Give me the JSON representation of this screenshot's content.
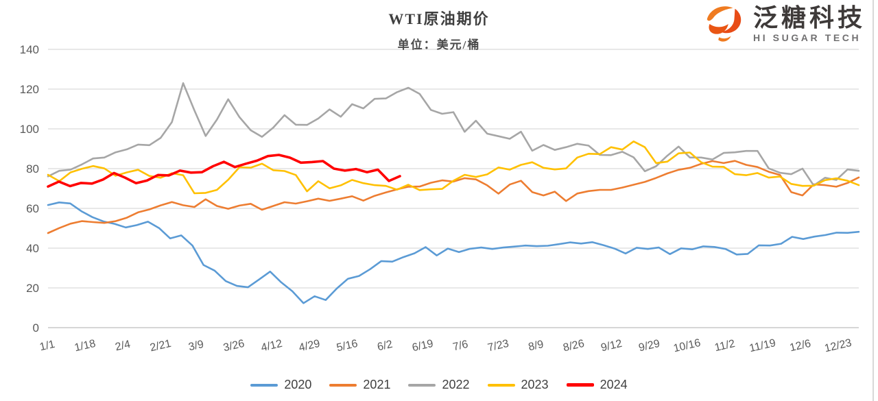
{
  "logo": {
    "name_cn": "泛糖科技",
    "name_en": "HI SUGAR TECH",
    "icon": "swirl-s-logo-icon",
    "icon_colors": [
      "#ef7b21",
      "#e84c17",
      "#e95513"
    ]
  },
  "colors": {
    "gridline": "#dbdbdb",
    "axis_line": "#c9c9c9",
    "axis_text": "#595959",
    "title_text": "#3f3f3f",
    "legend_text": "#404040",
    "window_edge": "#d8d8d8"
  },
  "chart_data": {
    "type": "line",
    "title": "WTI原油期价",
    "subtitle": "单位：美元/桶",
    "unit": "美元/桶",
    "grid": true,
    "legend_position": "bottom",
    "ylim": [
      0,
      140
    ],
    "y_ticks": [
      0,
      20,
      40,
      60,
      80,
      100,
      120,
      140
    ],
    "x_tick_labels": [
      "1/1",
      "1/18",
      "2/4",
      "2/21",
      "3/9",
      "3/26",
      "4/12",
      "4/29",
      "5/16",
      "6/2",
      "6/19",
      "7/6",
      "7/23",
      "8/9",
      "8/26",
      "9/12",
      "9/29",
      "10/16",
      "11/2",
      "11/19",
      "12/6",
      "12/23"
    ],
    "x_tick_days": [
      0,
      17,
      34,
      51,
      67,
      84,
      101,
      118,
      135,
      152,
      169,
      186,
      203,
      220,
      237,
      254,
      271,
      288,
      305,
      322,
      339,
      356
    ],
    "days_per_year": 365,
    "series": [
      {
        "name": "2020",
        "color": "#5b9bd5",
        "line_width": 2.6,
        "span_frac": 1.0,
        "values": [
          61.7,
          63.0,
          62.5,
          58.6,
          55.6,
          53.4,
          52.2,
          50.4,
          51.6,
          53.3,
          50.1,
          44.9,
          46.4,
          41.3,
          31.5,
          28.7,
          23.4,
          21.0,
          20.3,
          24.2,
          28.2,
          22.8,
          18.3,
          12.3,
          15.8,
          13.9,
          19.7,
          24.6,
          26.0,
          29.4,
          33.5,
          33.2,
          35.5,
          37.4,
          40.5,
          36.3,
          39.8,
          38.0,
          39.7,
          40.3,
          39.6,
          40.3,
          40.8,
          41.3,
          41.0,
          41.2,
          42.0,
          42.9,
          42.3,
          43.0,
          41.5,
          39.8,
          37.3,
          40.2,
          39.6,
          40.3,
          37.0,
          39.9,
          39.4,
          40.9,
          40.6,
          39.6,
          36.8,
          37.1,
          41.4,
          41.3,
          42.2,
          45.7,
          44.6,
          45.8,
          46.6,
          47.8,
          47.7,
          48.2
        ]
      },
      {
        "name": "2021",
        "color": "#ed7d31",
        "line_width": 2.6,
        "span_frac": 1.0,
        "values": [
          47.6,
          50.1,
          52.3,
          53.6,
          53.1,
          52.7,
          53.6,
          55.3,
          58.0,
          59.5,
          61.5,
          63.2,
          61.6,
          60.7,
          64.6,
          61.2,
          59.8,
          61.4,
          62.3,
          59.3,
          61.2,
          63.1,
          62.4,
          63.6,
          64.9,
          63.8,
          64.9,
          66.1,
          63.9,
          66.3,
          68.0,
          69.6,
          70.9,
          71.0,
          72.9,
          74.1,
          73.5,
          75.2,
          74.6,
          71.6,
          67.4,
          72.0,
          73.9,
          68.2,
          66.5,
          68.4,
          63.7,
          67.5,
          68.7,
          69.3,
          69.3,
          70.5,
          71.9,
          73.3,
          75.3,
          77.6,
          79.4,
          80.4,
          82.4,
          83.8,
          82.8,
          83.9,
          81.9,
          80.8,
          78.4,
          76.8,
          68.2,
          66.5,
          72.1,
          71.7,
          70.9,
          72.8,
          75.6
        ]
      },
      {
        "name": "2022",
        "color": "#a6a6a6",
        "line_width": 2.6,
        "span_frac": 1.0,
        "values": [
          76.1,
          78.9,
          79.5,
          82.1,
          85.1,
          85.6,
          88.2,
          89.7,
          92.1,
          91.8,
          95.5,
          103.4,
          123.0,
          109.3,
          96.4,
          104.7,
          114.9,
          105.9,
          99.3,
          96.0,
          100.6,
          106.9,
          102.1,
          102.0,
          105.2,
          109.8,
          106.1,
          112.4,
          110.3,
          115.1,
          115.3,
          118.5,
          120.7,
          117.6,
          109.5,
          107.6,
          108.4,
          98.5,
          104.1,
          97.6,
          96.3,
          95.0,
          98.6,
          89.0,
          91.9,
          89.4,
          90.8,
          92.5,
          91.6,
          86.9,
          86.8,
          88.5,
          85.7,
          78.7,
          81.2,
          86.5,
          91.1,
          85.6,
          85.6,
          84.6,
          87.9,
          88.2,
          88.9,
          88.9,
          80.1,
          77.9,
          77.2,
          80.0,
          71.5,
          75.4,
          74.3,
          79.6,
          78.9
        ]
      },
      {
        "name": "2023",
        "color": "#ffc000",
        "line_width": 2.6,
        "span_frac": 1.0,
        "values": [
          76.9,
          73.7,
          78.1,
          79.9,
          81.3,
          80.1,
          76.4,
          78.1,
          79.4,
          76.3,
          75.4,
          77.7,
          76.7,
          67.6,
          67.8,
          69.3,
          74.4,
          80.7,
          80.5,
          82.5,
          79.2,
          78.8,
          76.8,
          68.6,
          73.7,
          70.1,
          71.6,
          74.3,
          72.7,
          71.7,
          71.3,
          69.4,
          71.9,
          69.2,
          69.6,
          69.8,
          73.9,
          76.9,
          75.8,
          77.1,
          80.6,
          79.5,
          81.9,
          83.2,
          80.4,
          79.6,
          80.1,
          85.6,
          87.5,
          87.3,
          90.8,
          89.6,
          93.7,
          90.8,
          82.8,
          83.5,
          87.7,
          88.1,
          83.2,
          81.0,
          80.9,
          77.2,
          76.7,
          77.8,
          75.5,
          76.0,
          72.3,
          71.3,
          71.4,
          74.2,
          75.1,
          73.9,
          71.7
        ]
      },
      {
        "name": "2024",
        "color": "#ff0000",
        "line_width": 3.6,
        "span_frac": 0.434,
        "values": [
          71.0,
          73.5,
          71.2,
          72.8,
          72.5,
          74.5,
          77.8,
          75.5,
          72.7,
          74.0,
          76.8,
          76.6,
          79.0,
          78.0,
          78.2,
          81.2,
          83.4,
          80.8,
          82.5,
          84.0,
          86.3,
          86.9,
          85.5,
          83.0,
          83.3,
          83.8,
          80.0,
          79.0,
          79.8,
          78.2,
          79.5,
          73.8,
          76.2
        ]
      }
    ]
  }
}
